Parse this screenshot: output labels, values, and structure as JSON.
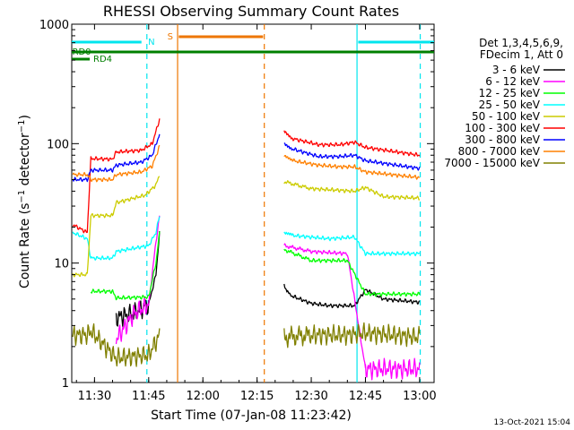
{
  "chart_data": {
    "type": "line",
    "title": "RHESSI Observing Summary Count Rates",
    "xlabel": "Start Time (07-Jan-08 11:23:42)",
    "ylabel": "Count Rate (s⁻¹ detector⁻¹)",
    "ylabel_main": "Count Rate (s",
    "ylabel_sup1": "−1",
    "ylabel_mid": " detector",
    "ylabel_sup2": "−1",
    "ylabel_end": ")",
    "y_scale": "log",
    "ylim": [
      1,
      1000
    ],
    "xlim": [
      "11:23:42",
      "13:04:00"
    ],
    "x_ticks": [
      "11:30",
      "11:45",
      "12:00",
      "12:15",
      "12:30",
      "12:45",
      "13:00"
    ],
    "y_ticks": [
      "1",
      "10",
      "100",
      "1000"
    ],
    "timestamp": "13-Oct-2021 15:04",
    "legend": {
      "placement": "right",
      "header": [
        "Det 1,3,4,5,6,9,",
        "FDecim 1, Att 0"
      ]
    },
    "flags": [
      {
        "label": "RD0",
        "color": "#007f00"
      },
      {
        "label": "RD4",
        "color": "#007f00"
      },
      {
        "label": "N",
        "color": "#00e5ee"
      },
      {
        "label": "S",
        "color": "#ee7600"
      }
    ],
    "markers": [
      {
        "time": "11:44:30",
        "color": "#00e5ee",
        "style": "dashed"
      },
      {
        "time": "11:53:00",
        "color": "#ee7600",
        "style": "solid"
      },
      {
        "time": "12:17:00",
        "color": "#ee7600",
        "style": "dashed"
      },
      {
        "time": "12:42:40",
        "color": "#00e5ee",
        "style": "solid"
      },
      {
        "time": "13:00:10",
        "color": "#00e5ee",
        "style": "dashed"
      }
    ],
    "series": [
      {
        "name": "3 - 6 keV",
        "color": "#000000",
        "segments": [
          [
            [
              "11:36:00",
              3.5
            ],
            [
              "11:41:00",
              3.8
            ],
            [
              "11:45:00",
              4.5
            ],
            [
              "11:47:00",
              8
            ],
            [
              "11:48:00",
              18
            ]
          ],
          [
            [
              "12:22:30",
              6.5
            ],
            [
              "12:24:00",
              5.4
            ],
            [
              "12:30:00",
              4.6
            ],
            [
              "12:35:00",
              4.4
            ],
            [
              "12:42:00",
              4.4
            ],
            [
              "12:45:00",
              6.0
            ],
            [
              "12:50:00",
              5.0
            ],
            [
              "13:00:00",
              4.7
            ]
          ]
        ]
      },
      {
        "name": "6 - 12 keV",
        "color": "#ff00ff",
        "segments": [
          [
            [
              "11:36:00",
              2.3
            ],
            [
              "11:41:00",
              3.8
            ],
            [
              "11:45:00",
              4.5
            ],
            [
              "11:47:00",
              15
            ],
            [
              "11:48:00",
              25
            ]
          ],
          [
            [
              "12:22:30",
              14
            ],
            [
              "12:30:00",
              12.5
            ],
            [
              "12:40:00",
              12
            ],
            [
              "12:45:00",
              1.3
            ],
            [
              "13:00:00",
              1.3
            ]
          ]
        ]
      },
      {
        "name": "12 - 25 keV",
        "color": "#00ff00",
        "segments": [
          [
            [
              "11:29:00",
              5.8
            ],
            [
              "11:35:00",
              5.8
            ],
            [
              "11:36:00",
              5.1
            ],
            [
              "11:45:00",
              5.2
            ],
            [
              "11:47:00",
              10
            ],
            [
              "11:48:00",
              18
            ]
          ],
          [
            [
              "12:22:30",
              13
            ],
            [
              "12:30:00",
              10.5
            ],
            [
              "12:40:00",
              10.5
            ],
            [
              "12:45:00",
              5.5
            ],
            [
              "13:00:00",
              5.5
            ]
          ]
        ]
      },
      {
        "name": "25 - 50 keV",
        "color": "#00ffff",
        "segments": [
          [
            [
              "11:24:00",
              18
            ],
            [
              "11:28:00",
              16
            ],
            [
              "11:29:00",
              11
            ],
            [
              "11:35:00",
              11
            ],
            [
              "11:36:00",
              12.5
            ],
            [
              "11:45:00",
              14
            ],
            [
              "11:47:00",
              18
            ],
            [
              "11:48:00",
              25
            ]
          ],
          [
            [
              "12:22:30",
              18
            ],
            [
              "12:25:00",
              17
            ],
            [
              "12:35:00",
              16
            ],
            [
              "12:42:00",
              16.5
            ],
            [
              "12:45:00",
              12
            ],
            [
              "13:00:00",
              12
            ]
          ]
        ]
      },
      {
        "name": "50 - 100 keV",
        "color": "#cccc00",
        "segments": [
          [
            [
              "11:24:00",
              8
            ],
            [
              "11:28:00",
              8
            ],
            [
              "11:29:00",
              25
            ],
            [
              "11:35:00",
              25
            ],
            [
              "11:36:00",
              32
            ],
            [
              "11:44:00",
              37
            ],
            [
              "11:47:00",
              45
            ],
            [
              "11:48:00",
              55
            ]
          ],
          [
            [
              "12:22:30",
              48
            ],
            [
              "12:30:00",
              42
            ],
            [
              "12:42:00",
              40
            ],
            [
              "12:45:00",
              43
            ],
            [
              "12:50:00",
              36
            ],
            [
              "13:00:00",
              35
            ]
          ]
        ]
      },
      {
        "name": "100 - 300 keV",
        "color": "#ff0000",
        "segments": [
          [
            [
              "11:24:00",
              21
            ],
            [
              "11:28:00",
              18
            ],
            [
              "11:29:00",
              75
            ],
            [
              "11:35:00",
              74
            ],
            [
              "11:36:00",
              85
            ],
            [
              "11:43:00",
              88
            ],
            [
              "11:46:00",
              100
            ],
            [
              "11:48:00",
              160
            ]
          ],
          [
            [
              "12:22:30",
              130
            ],
            [
              "12:25:00",
              110
            ],
            [
              "12:32:00",
              98
            ],
            [
              "12:38:00",
              98
            ],
            [
              "12:42:00",
              103
            ],
            [
              "12:45:00",
              93
            ],
            [
              "13:00:00",
              80
            ]
          ]
        ]
      },
      {
        "name": "300 - 800 keV",
        "color": "#0000ff",
        "segments": [
          [
            [
              "11:24:00",
              50
            ],
            [
              "11:28:00",
              50
            ],
            [
              "11:29:00",
              60
            ],
            [
              "11:35:00",
              60
            ],
            [
              "11:36:00",
              66
            ],
            [
              "11:43:00",
              70
            ],
            [
              "11:46:00",
              80
            ],
            [
              "11:48:00",
              120
            ]
          ],
          [
            [
              "12:22:30",
              100
            ],
            [
              "12:25:00",
              90
            ],
            [
              "12:32:00",
              78
            ],
            [
              "12:38:00",
              78
            ],
            [
              "12:42:00",
              80
            ],
            [
              "12:45:00",
              72
            ],
            [
              "13:00:00",
              62
            ]
          ]
        ]
      },
      {
        "name": "800 - 7000 keV",
        "color": "#ff8000",
        "segments": [
          [
            [
              "11:24:00",
              55
            ],
            [
              "11:28:00",
              55
            ],
            [
              "11:29:00",
              50
            ],
            [
              "11:35:00",
              50
            ],
            [
              "11:36:00",
              55
            ],
            [
              "11:43:00",
              58
            ],
            [
              "11:46:00",
              65
            ],
            [
              "11:48:00",
              95
            ]
          ],
          [
            [
              "12:22:30",
              78
            ],
            [
              "12:25:00",
              72
            ],
            [
              "12:32:00",
              66
            ],
            [
              "12:38:00",
              64
            ],
            [
              "12:42:00",
              64
            ],
            [
              "12:45:00",
              58
            ],
            [
              "13:00:00",
              52
            ]
          ]
        ]
      },
      {
        "name": "7000 - 15000 keV",
        "color": "#808000",
        "segments": [
          [
            [
              "11:24:00",
              2.5
            ],
            [
              "11:28:00",
              2.5
            ],
            [
              "11:29:00",
              2.7
            ],
            [
              "11:36:00",
              1.6
            ],
            [
              "11:45:00",
              1.7
            ],
            [
              "11:48:00",
              2.5
            ]
          ],
          [
            [
              "12:22:30",
              2.4
            ],
            [
              "12:30:00",
              2.5
            ],
            [
              "12:40:00",
              2.5
            ],
            [
              "12:45:00",
              2.6
            ],
            [
              "13:00:00",
              2.4
            ]
          ]
        ]
      }
    ]
  }
}
